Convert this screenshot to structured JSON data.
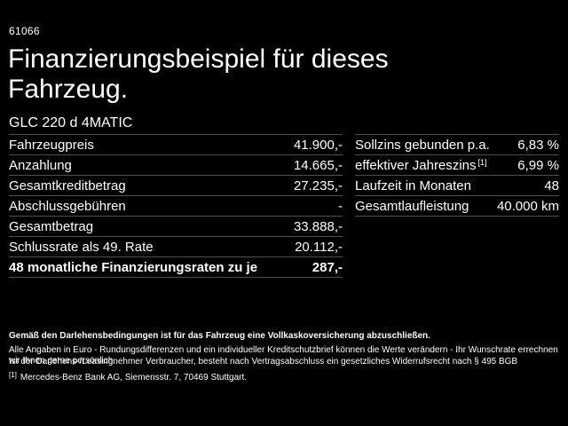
{
  "page": {
    "vehicle_code": "61066",
    "title_line1": "Finanzierungsbeispiel für dieses",
    "title_line2": "Fahrzeug.",
    "model": "GLC 220 d 4MATIC"
  },
  "finance_table": {
    "rows": [
      {
        "label": "Fahrzeugpreis",
        "value": "41.900,-"
      },
      {
        "label": "Anzahlung",
        "value": "14.665,-"
      },
      {
        "label": "Gesamtkreditbetrag",
        "value": "27.235,-"
      },
      {
        "label": "Abschlussgebühren",
        "value": "-"
      },
      {
        "label": "Gesamtbetrag",
        "value": "33.888,-"
      },
      {
        "label": "Schlussrate als 49. Rate",
        "value": "20.112,-"
      },
      {
        "label": "48 monatliche Finanzierungsraten zu je",
        "value": "287,-"
      }
    ]
  },
  "conditions_table": {
    "rows": [
      {
        "label": "Sollzins gebunden p.a.",
        "sup": "",
        "value": "6,83 %"
      },
      {
        "label": "effektiver Jahreszins",
        "sup": "[1]",
        "value": "6,99 %"
      },
      {
        "label": "Laufzeit in Monaten",
        "sup": "",
        "value": "48"
      },
      {
        "label": "Gesamtlaufleistung",
        "sup": "",
        "value": "40.000 km"
      }
    ]
  },
  "footer": {
    "insurance_note": "Gemäß den Darlehensbedingungen ist für das Fahrzeug eine Vollkaskoversicherung abzuschließen.",
    "note_line2": "Alle Angaben in Euro - Rundungsdifferenzen und ein individueller Kreditschutzbrief können die Werte verändern - Ihr Wunschrate errechnen wir Ihnen gerne persönlich",
    "note_line3": "Ist der Darlehens-/Leasingnehmer Verbraucher, besteht nach Vertragsabschluss ein gesetzliches Widerrufsrecht nach § 495 BGB",
    "footnote_marker": "[1]",
    "footnote_text": "Mercedes-Benz Bank AG, Siemensstr. 7, 70469 Stuttgart."
  },
  "colors": {
    "background": "#000000",
    "text": "#ffffff",
    "divider": "#4f4f4f"
  }
}
